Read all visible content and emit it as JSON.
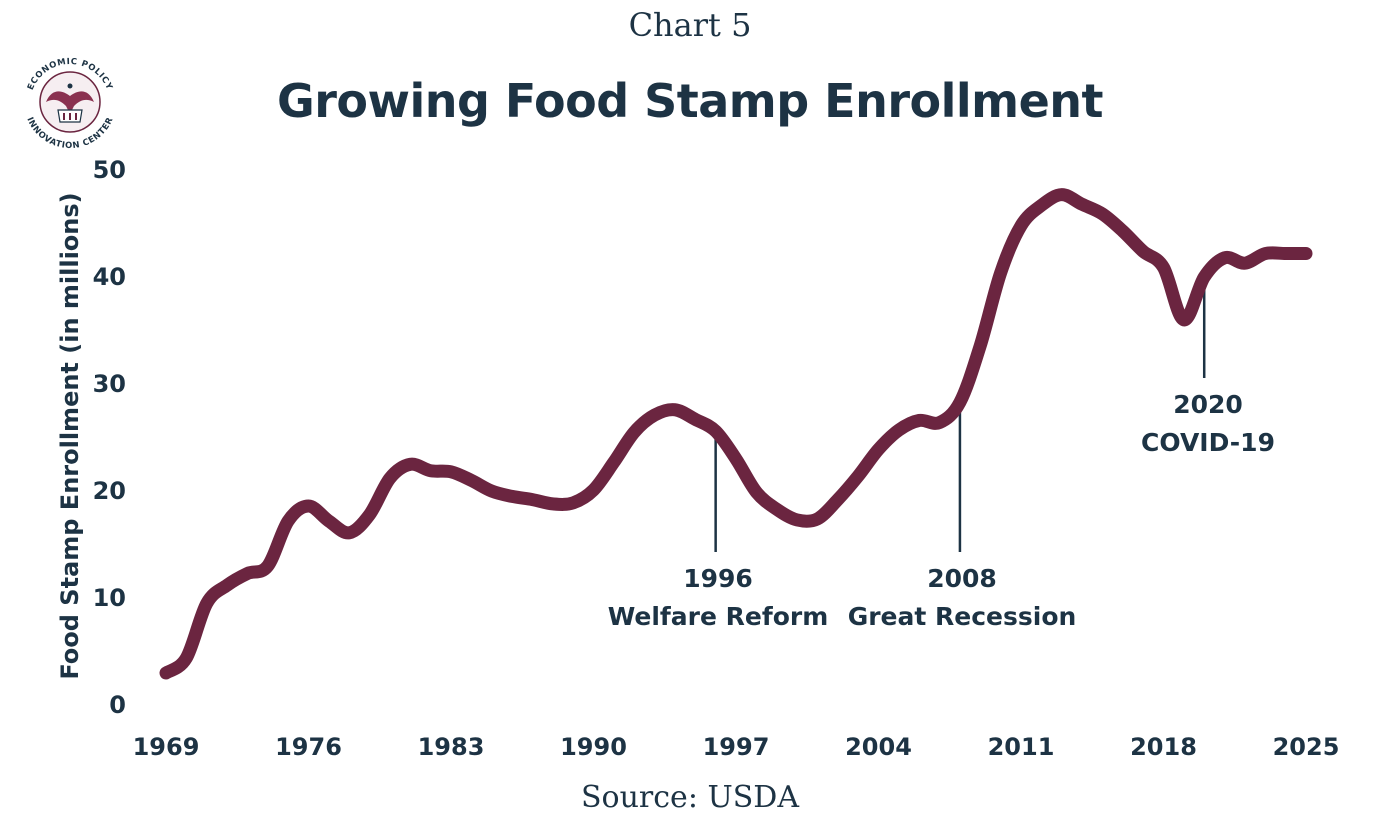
{
  "header": {
    "chart_label": "Chart 5",
    "title": "Growing Food Stamp Enrollment",
    "logo_text_top": "ECONOMIC POLICY",
    "logo_text_bottom": "INNOVATION CENTER"
  },
  "footer": {
    "source": "Source: USDA"
  },
  "colors": {
    "line": "#6b2540",
    "text": "#1d3344",
    "annotation_line": "#1d3344"
  },
  "chart_data": {
    "type": "line",
    "title": "Growing Food Stamp Enrollment",
    "ylabel": "Food Stamp Enrollment (in millions)",
    "xlabel": "",
    "ylim": [
      0,
      50
    ],
    "xlim": [
      1969,
      2025
    ],
    "grid": false,
    "y_ticks": [
      0,
      10,
      20,
      30,
      40,
      50
    ],
    "x_ticks": [
      1969,
      1976,
      1983,
      1990,
      1997,
      2004,
      2011,
      2018,
      2025
    ],
    "series": [
      {
        "x": [
          1969,
          1970,
          1971,
          1972,
          1973,
          1974,
          1975,
          1976,
          1977,
          1978,
          1979,
          1980,
          1981,
          1982,
          1983,
          1984,
          1985,
          1986,
          1987,
          1988,
          1989,
          1990,
          1991,
          1992,
          1993,
          1994,
          1995,
          1996,
          1997,
          1998,
          1999,
          2000,
          2001,
          2002,
          2003,
          2004,
          2005,
          2006,
          2007,
          2008,
          2009,
          2010,
          2011,
          2012,
          2013,
          2014,
          2015,
          2016,
          2017,
          2018,
          2019,
          2020,
          2021,
          2022,
          2023,
          2024,
          2025
        ],
        "values": [
          2.9,
          4.3,
          9.4,
          11.1,
          12.2,
          12.9,
          17.1,
          18.5,
          17.1,
          16.0,
          17.7,
          21.1,
          22.4,
          21.8,
          21.7,
          20.9,
          19.9,
          19.4,
          19.1,
          18.7,
          18.8,
          20.0,
          22.6,
          25.4,
          27.0,
          27.5,
          26.6,
          25.5,
          22.9,
          19.8,
          18.2,
          17.2,
          17.3,
          19.1,
          21.3,
          23.8,
          25.6,
          26.5,
          26.3,
          28.2,
          33.5,
          40.3,
          44.7,
          46.6,
          47.6,
          46.7,
          45.8,
          44.2,
          42.3,
          40.8,
          35.9,
          39.9,
          41.7,
          41.2,
          42.1,
          42.1,
          42.1
        ]
      }
    ],
    "annotations": [
      {
        "year": 1996,
        "value": 25.5,
        "year_label": "1996",
        "text": "Welfare Reform"
      },
      {
        "year": 2008,
        "value": 28.2,
        "year_label": "2008",
        "text": "Great Recession"
      },
      {
        "year": 2020,
        "value": 39.9,
        "year_label": "2020",
        "text": "COVID-19"
      }
    ]
  }
}
